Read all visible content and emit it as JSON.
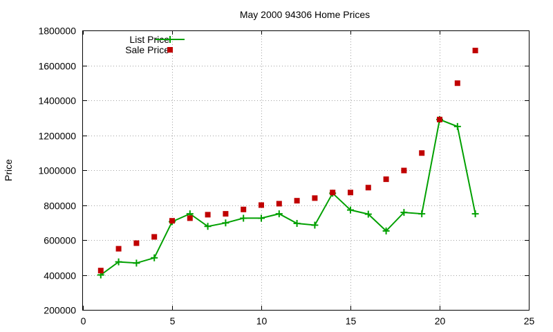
{
  "chart_data": {
    "type": "line",
    "title": "May 2000 94306 Home Prices",
    "ylabel": "Price",
    "xlabel": "",
    "xlim": [
      0,
      25
    ],
    "ylim": [
      200000,
      1800000
    ],
    "x_ticks": [
      0,
      5,
      10,
      15,
      20,
      25
    ],
    "y_ticks": [
      200000,
      400000,
      600000,
      800000,
      1000000,
      1200000,
      1400000,
      1600000,
      1800000
    ],
    "grid": true,
    "legend_position": "top-left",
    "series": [
      {
        "name": "List Price",
        "style": "line-with-plus-markers",
        "color": "#00a000",
        "x": [
          1,
          2,
          3,
          4,
          5,
          6,
          7,
          8,
          9,
          10,
          11,
          12,
          13,
          14,
          15,
          16,
          17,
          18,
          19,
          20,
          21,
          22
        ],
        "y": [
          400000,
          475000,
          468000,
          498000,
          705000,
          750000,
          678000,
          698000,
          725000,
          725000,
          750000,
          695000,
          685000,
          868000,
          772000,
          748000,
          652000,
          758000,
          750000,
          1290000,
          1250000,
          750000
        ]
      },
      {
        "name": "Sale Price",
        "style": "square-markers",
        "color": "#c00000",
        "x": [
          1,
          2,
          3,
          4,
          5,
          6,
          7,
          8,
          9,
          10,
          11,
          12,
          13,
          14,
          15,
          16,
          17,
          18,
          19,
          20,
          21,
          22
        ],
        "y": [
          425000,
          550000,
          582000,
          618000,
          710000,
          725000,
          745000,
          750000,
          775000,
          800000,
          808000,
          825000,
          840000,
          872000,
          872000,
          900000,
          948000,
          998000,
          1098000,
          1290000,
          1498000,
          1685000
        ]
      }
    ]
  }
}
